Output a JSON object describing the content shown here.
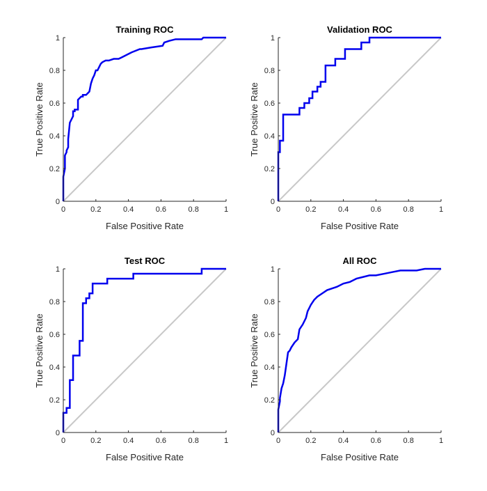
{
  "chart_data": [
    {
      "type": "line",
      "title": "Training ROC",
      "xlabel": "False Positive Rate",
      "ylabel": "True Positive Rate",
      "xlim": [
        0,
        1
      ],
      "ylim": [
        0,
        1
      ],
      "xticks": [
        "0",
        "0.2",
        "0.4",
        "0.6",
        "0.8",
        "1"
      ],
      "yticks": [
        "0",
        "0.2",
        "0.4",
        "0.6",
        "0.8",
        "1"
      ],
      "grid": false,
      "colors": {
        "roc": "#0000ee",
        "reference": "#c8c8c8"
      },
      "series": [
        {
          "type": "diagonal",
          "x": [
            0,
            1
          ],
          "y": [
            0,
            1
          ]
        },
        {
          "type": "roc",
          "x": [
            0,
            0,
            0.01,
            0.01,
            0.02,
            0.02,
            0.03,
            0.03,
            0.04,
            0.05,
            0.06,
            0.06,
            0.07,
            0.07,
            0.09,
            0.09,
            0.11,
            0.12,
            0.12,
            0.14,
            0.16,
            0.17,
            0.18,
            0.19,
            0.2,
            0.21,
            0.22,
            0.23,
            0.24,
            0.26,
            0.28,
            0.31,
            0.34,
            0.36,
            0.4,
            0.42,
            0.47,
            0.48,
            0.54,
            0.61,
            0.62,
            0.65,
            0.69,
            0.85,
            0.86,
            1
          ],
          "y": [
            0,
            0.15,
            0.2,
            0.28,
            0.3,
            0.31,
            0.33,
            0.38,
            0.48,
            0.5,
            0.52,
            0.55,
            0.55,
            0.56,
            0.56,
            0.62,
            0.64,
            0.64,
            0.65,
            0.65,
            0.67,
            0.72,
            0.75,
            0.77,
            0.8,
            0.8,
            0.82,
            0.84,
            0.85,
            0.86,
            0.86,
            0.87,
            0.87,
            0.88,
            0.9,
            0.91,
            0.93,
            0.93,
            0.94,
            0.95,
            0.97,
            0.98,
            0.99,
            0.99,
            1,
            1
          ]
        }
      ]
    },
    {
      "type": "line",
      "title": "Validation ROC",
      "xlabel": "False Positive Rate",
      "ylabel": "True Positive Rate",
      "xlim": [
        0,
        1
      ],
      "ylim": [
        0,
        1
      ],
      "xticks": [
        "0",
        "0.2",
        "0.4",
        "0.6",
        "0.8",
        "1"
      ],
      "yticks": [
        "0",
        "0.2",
        "0.4",
        "0.6",
        "0.8",
        "1"
      ],
      "grid": false,
      "colors": {
        "roc": "#0000ee",
        "reference": "#c8c8c8"
      },
      "series": [
        {
          "type": "diagonal",
          "x": [
            0,
            1
          ],
          "y": [
            0,
            1
          ]
        },
        {
          "type": "roc",
          "x": [
            0,
            0,
            0.01,
            0.01,
            0.03,
            0.03,
            0.13,
            0.13,
            0.16,
            0.16,
            0.19,
            0.19,
            0.21,
            0.21,
            0.24,
            0.24,
            0.26,
            0.26,
            0.29,
            0.29,
            0.35,
            0.35,
            0.41,
            0.41,
            0.51,
            0.51,
            0.56,
            0.56,
            1
          ],
          "y": [
            0,
            0.3,
            0.3,
            0.37,
            0.37,
            0.53,
            0.53,
            0.57,
            0.57,
            0.6,
            0.6,
            0.63,
            0.63,
            0.67,
            0.67,
            0.7,
            0.7,
            0.73,
            0.73,
            0.83,
            0.83,
            0.87,
            0.87,
            0.93,
            0.93,
            0.97,
            0.97,
            1,
            1
          ]
        }
      ]
    },
    {
      "type": "line",
      "title": "Test ROC",
      "xlabel": "False Positive Rate",
      "ylabel": "True Positive Rate",
      "xlim": [
        0,
        1
      ],
      "ylim": [
        0,
        1
      ],
      "xticks": [
        "0",
        "0.2",
        "0.4",
        "0.6",
        "0.8",
        "1"
      ],
      "yticks": [
        "0",
        "0.2",
        "0.4",
        "0.6",
        "0.8",
        "1"
      ],
      "grid": false,
      "colors": {
        "roc": "#0000ee",
        "reference": "#c8c8c8"
      },
      "series": [
        {
          "type": "diagonal",
          "x": [
            0,
            1
          ],
          "y": [
            0,
            1
          ]
        },
        {
          "type": "roc",
          "x": [
            0,
            0,
            0.02,
            0.02,
            0.04,
            0.04,
            0.06,
            0.06,
            0.1,
            0.1,
            0.12,
            0.12,
            0.14,
            0.14,
            0.16,
            0.16,
            0.18,
            0.18,
            0.27,
            0.27,
            0.43,
            0.43,
            0.85,
            0.85,
            1
          ],
          "y": [
            0,
            0.12,
            0.12,
            0.15,
            0.15,
            0.32,
            0.32,
            0.47,
            0.47,
            0.56,
            0.56,
            0.79,
            0.79,
            0.82,
            0.82,
            0.85,
            0.85,
            0.91,
            0.91,
            0.94,
            0.94,
            0.97,
            0.97,
            1,
            1
          ]
        }
      ]
    },
    {
      "type": "line",
      "title": "All ROC",
      "xlabel": "False Positive Rate",
      "ylabel": "True Positive Rate",
      "xlim": [
        0,
        1
      ],
      "ylim": [
        0,
        1
      ],
      "xticks": [
        "0",
        "0.2",
        "0.4",
        "0.6",
        "0.8",
        "1"
      ],
      "yticks": [
        "0",
        "0.2",
        "0.4",
        "0.6",
        "0.8",
        "1"
      ],
      "grid": false,
      "colors": {
        "roc": "#0000ee",
        "reference": "#c8c8c8"
      },
      "series": [
        {
          "type": "diagonal",
          "x": [
            0,
            1
          ],
          "y": [
            0,
            1
          ]
        },
        {
          "type": "roc",
          "x": [
            0,
            0,
            0.01,
            0.01,
            0.02,
            0.03,
            0.04,
            0.05,
            0.06,
            0.07,
            0.08,
            0.1,
            0.12,
            0.13,
            0.15,
            0.17,
            0.18,
            0.2,
            0.22,
            0.24,
            0.27,
            0.3,
            0.33,
            0.36,
            0.4,
            0.44,
            0.48,
            0.52,
            0.56,
            0.6,
            0.65,
            0.7,
            0.75,
            0.8,
            0.85,
            0.9,
            0.95,
            1
          ],
          "y": [
            0,
            0.14,
            0.19,
            0.21,
            0.27,
            0.3,
            0.35,
            0.42,
            0.49,
            0.5,
            0.52,
            0.55,
            0.57,
            0.63,
            0.66,
            0.7,
            0.74,
            0.78,
            0.81,
            0.83,
            0.85,
            0.87,
            0.88,
            0.89,
            0.91,
            0.92,
            0.94,
            0.95,
            0.96,
            0.96,
            0.97,
            0.98,
            0.99,
            0.99,
            0.99,
            1,
            1,
            1
          ]
        }
      ]
    }
  ]
}
